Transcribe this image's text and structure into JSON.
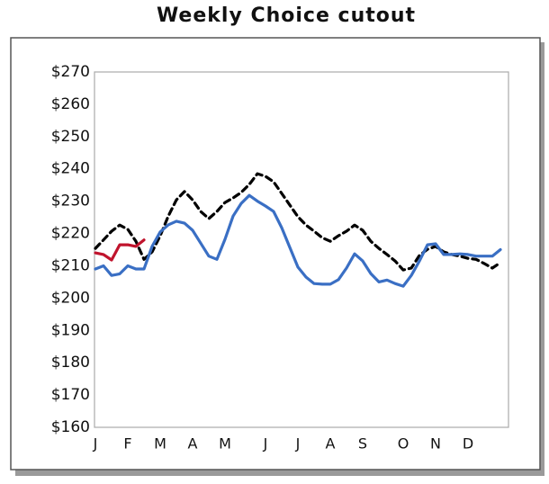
{
  "chart_data": {
    "type": "line",
    "title": "Weekly Choice cutout",
    "categories": [
      "J",
      null,
      null,
      null,
      "F",
      null,
      null,
      null,
      "M",
      null,
      null,
      null,
      "A",
      null,
      null,
      null,
      "M",
      null,
      null,
      null,
      null,
      "J",
      null,
      null,
      null,
      "J",
      null,
      null,
      null,
      "A",
      null,
      null,
      null,
      "S",
      null,
      null,
      null,
      null,
      "O",
      null,
      null,
      null,
      "N",
      null,
      null,
      null,
      "D",
      null,
      null,
      null,
      null,
      null
    ],
    "series": [
      {
        "color": "#000000",
        "dash": true,
        "values": [
          215.4,
          218,
          220.7,
          222.6,
          221.3,
          217.6,
          212,
          214.3,
          219.3,
          225.4,
          230.4,
          233,
          230.4,
          226.8,
          224.6,
          226.8,
          229.6,
          231,
          232.7,
          235.2,
          238.5,
          237.7,
          236,
          232.4,
          228.8,
          225.2,
          222.6,
          220.7,
          218.7,
          217.6,
          219.3,
          220.7,
          222.6,
          221,
          217.6,
          215.4,
          213.5,
          211.5,
          208.7,
          209.3,
          213.2,
          215.1,
          216,
          214.3,
          213.5,
          213,
          212.3,
          212,
          210.7,
          209.3,
          211,
          null
        ]
      },
      {
        "color": "#3a6fc4",
        "dash": false,
        "values": [
          209,
          210,
          207,
          207.5,
          210,
          209,
          209,
          216,
          220.5,
          222.7,
          223.8,
          223.2,
          221,
          217,
          213,
          212,
          218.2,
          225.4,
          229.3,
          231.8,
          230,
          228.5,
          226.8,
          221.8,
          215.7,
          209.6,
          206.5,
          204.5,
          204.3,
          204.3,
          205.7,
          209.3,
          213.7,
          211.5,
          207.6,
          205,
          205.6,
          204.5,
          203.7,
          207,
          211.5,
          216.5,
          216.8,
          213.5,
          213.5,
          213.7,
          213.5,
          213,
          213,
          213,
          215,
          null
        ]
      },
      {
        "color": "#c0142d",
        "dash": false,
        "values": [
          214,
          213.5,
          211.8,
          216.5,
          216.5,
          216,
          218,
          null,
          null,
          null,
          null,
          null,
          null,
          null,
          null,
          null,
          null,
          null,
          null,
          null,
          null,
          null,
          null,
          null,
          null,
          null,
          null,
          null,
          null,
          null,
          null,
          null,
          null,
          null,
          null,
          null,
          null,
          null,
          null,
          null,
          null,
          null,
          null,
          null,
          null,
          null,
          null,
          null,
          null,
          null,
          null,
          null
        ]
      }
    ],
    "ylim": [
      160,
      270
    ],
    "yticks": [
      {
        "value": 160,
        "label": "$160"
      },
      {
        "value": 170,
        "label": "$170"
      },
      {
        "value": 180,
        "label": "$180"
      },
      {
        "value": 190,
        "label": "$190"
      },
      {
        "value": 200,
        "label": "$200"
      },
      {
        "value": 210,
        "label": "$210"
      },
      {
        "value": 220,
        "label": "$220"
      },
      {
        "value": 230,
        "label": "$230"
      },
      {
        "value": 240,
        "label": "$240"
      },
      {
        "value": 250,
        "label": "$250"
      },
      {
        "value": 260,
        "label": "$260"
      },
      {
        "value": 270,
        "label": "$270"
      }
    ],
    "grid": false
  }
}
